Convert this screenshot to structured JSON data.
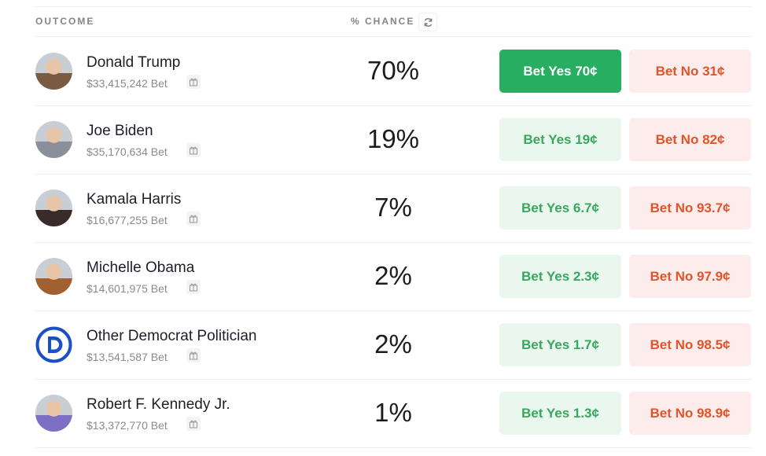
{
  "header": {
    "outcome": "OUTCOME",
    "chance": "% CHANCE",
    "refresh_icon": "refresh-icon"
  },
  "colors": {
    "yes_active": "#27ae60",
    "yes": "#e9f7ee",
    "yes_text": "#3aa760",
    "no": "#fdecec",
    "no_text": "#e2532a"
  },
  "rows": [
    {
      "name": "Donald Trump",
      "volume": "$33,415,242 Bet",
      "chance": "70%",
      "yes": "Bet Yes 70¢",
      "no": "Bet No 31¢",
      "active": true,
      "avatar": "#7a5a40"
    },
    {
      "name": "Joe Biden",
      "volume": "$35,170,634 Bet",
      "chance": "19%",
      "yes": "Bet Yes 19¢",
      "no": "Bet No 82¢",
      "avatar": "#8a8f99"
    },
    {
      "name": "Kamala Harris",
      "volume": "$16,677,255 Bet",
      "chance": "7%",
      "yes": "Bet Yes 6.7¢",
      "no": "Bet No 93.7¢",
      "avatar": "#3a2a2a"
    },
    {
      "name": "Michelle Obama",
      "volume": "$14,601,975 Bet",
      "chance": "2%",
      "yes": "Bet Yes 2.3¢",
      "no": "Bet No 97.9¢",
      "avatar": "#a0602f"
    },
    {
      "name": "Other Democrat Politician",
      "volume": "$13,541,587 Bet",
      "chance": "2%",
      "yes": "Bet Yes 1.7¢",
      "no": "Bet No 98.5¢",
      "avatar": "democrat-logo"
    },
    {
      "name": "Robert F. Kennedy Jr.",
      "volume": "$13,372,770 Bet",
      "chance": "1%",
      "yes": "Bet Yes 1.3¢",
      "no": "Bet No 98.9¢",
      "avatar": "#7d6fc4"
    }
  ]
}
